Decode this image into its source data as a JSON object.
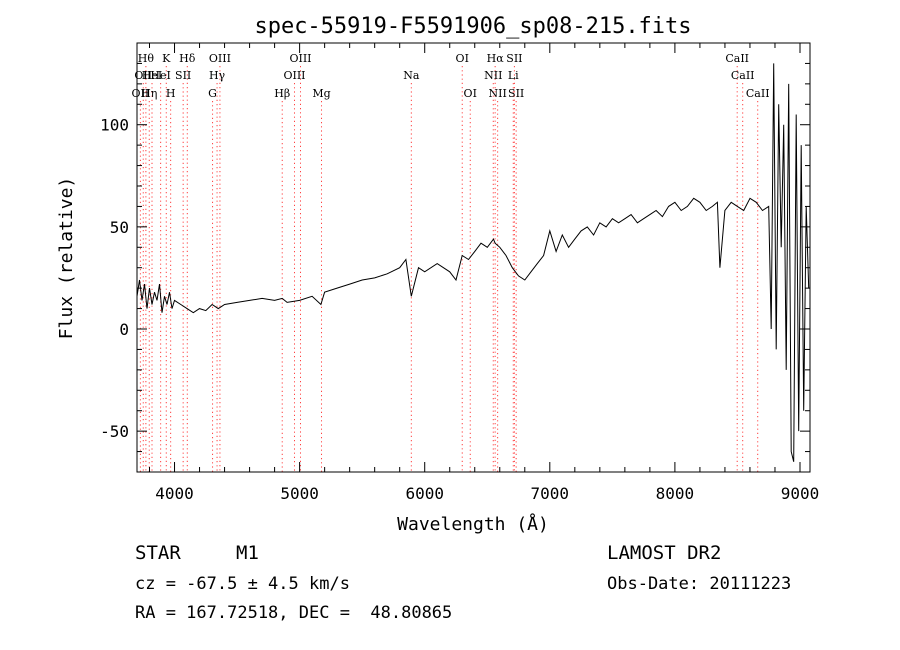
{
  "chart_data": {
    "type": "line",
    "title": "spec-55919-F5591906_sp08-215.fits",
    "xlabel": "Wavelength (Å)",
    "ylabel": "Flux (relative)",
    "xlim": [
      3700,
      9080
    ],
    "ylim": [
      -70,
      140
    ],
    "xticks": [
      4000,
      5000,
      6000,
      7000,
      8000,
      9000
    ],
    "yticks": [
      -50,
      0,
      50,
      100
    ],
    "grid": false,
    "line_color": "#000000",
    "marker_color": "#ff4040",
    "spectrum": {
      "x": [
        3700,
        3720,
        3740,
        3760,
        3780,
        3800,
        3820,
        3840,
        3860,
        3880,
        3900,
        3920,
        3940,
        3960,
        3980,
        4000,
        4050,
        4100,
        4150,
        4200,
        4250,
        4300,
        4350,
        4400,
        4500,
        4600,
        4700,
        4800,
        4861,
        4900,
        5000,
        5100,
        5170,
        5200,
        5300,
        5400,
        5500,
        5600,
        5700,
        5800,
        5850,
        5893,
        5950,
        6000,
        6100,
        6200,
        6250,
        6300,
        6350,
        6400,
        6450,
        6500,
        6550,
        6563,
        6600,
        6650,
        6700,
        6750,
        6800,
        6850,
        6900,
        6950,
        7000,
        7050,
        7100,
        7150,
        7200,
        7250,
        7300,
        7350,
        7400,
        7450,
        7500,
        7550,
        7600,
        7650,
        7700,
        7750,
        7800,
        7850,
        7900,
        7950,
        8000,
        8050,
        8100,
        8150,
        8200,
        8250,
        8300,
        8340,
        8360,
        8400,
        8450,
        8500,
        8550,
        8600,
        8650,
        8700,
        8750,
        8770,
        8790,
        8810,
        8830,
        8850,
        8870,
        8890,
        8910,
        8930,
        8950,
        8970,
        8990,
        9010,
        9030,
        9050,
        9070
      ],
      "y": [
        16,
        24,
        14,
        22,
        10,
        20,
        12,
        18,
        14,
        22,
        8,
        16,
        12,
        18,
        10,
        14,
        12,
        10,
        8,
        10,
        9,
        12,
        10,
        12,
        13,
        14,
        15,
        14,
        15,
        13,
        14,
        16,
        12,
        18,
        20,
        22,
        24,
        25,
        27,
        30,
        34,
        16,
        30,
        28,
        32,
        28,
        24,
        36,
        34,
        38,
        42,
        40,
        44,
        42,
        40,
        36,
        30,
        26,
        24,
        28,
        32,
        36,
        48,
        38,
        46,
        40,
        44,
        48,
        50,
        46,
        52,
        50,
        54,
        52,
        54,
        56,
        52,
        54,
        56,
        58,
        55,
        60,
        62,
        58,
        60,
        64,
        62,
        58,
        60,
        62,
        30,
        58,
        62,
        60,
        58,
        64,
        62,
        58,
        60,
        0,
        130,
        -10,
        110,
        40,
        100,
        -20,
        120,
        -60,
        -65,
        105,
        -50,
        90,
        -40,
        60,
        20
      ]
    },
    "lines": [
      {
        "x": 3727,
        "label": "OII",
        "row": 2
      },
      {
        "x": 3750,
        "label": "OII",
        "row": 1
      },
      {
        "x": 3771,
        "label": "Hθ",
        "row": 0
      },
      {
        "x": 3798,
        "label": "Hη",
        "row": 2
      },
      {
        "x": 3820,
        "label": "HeI",
        "row": 1
      },
      {
        "x": 3889,
        "label": "HeI",
        "row": 1
      },
      {
        "x": 3934,
        "label": "K",
        "row": 0
      },
      {
        "x": 3969,
        "label": "H",
        "row": 2
      },
      {
        "x": 4069,
        "label": "SII",
        "row": 1
      },
      {
        "x": 4102,
        "label": "Hδ",
        "row": 0
      },
      {
        "x": 4304,
        "label": "G",
        "row": 2
      },
      {
        "x": 4340,
        "label": "Hγ",
        "row": 1
      },
      {
        "x": 4363,
        "label": "OIII",
        "row": 0
      },
      {
        "x": 4861,
        "label": "Hβ",
        "row": 2
      },
      {
        "x": 4959,
        "label": "OIII",
        "row": 1
      },
      {
        "x": 5007,
        "label": "OIII",
        "row": 0
      },
      {
        "x": 5175,
        "label": "Mg",
        "row": 2
      },
      {
        "x": 5893,
        "label": "Na",
        "row": 1
      },
      {
        "x": 6300,
        "label": "OI",
        "row": 0
      },
      {
        "x": 6364,
        "label": "OI",
        "row": 2
      },
      {
        "x": 6548,
        "label": "NII",
        "row": 1
      },
      {
        "x": 6563,
        "label": "Hα",
        "row": 0
      },
      {
        "x": 6583,
        "label": "NII",
        "row": 2
      },
      {
        "x": 6708,
        "label": "Li",
        "row": 1
      },
      {
        "x": 6717,
        "label": "SII",
        "row": 0
      },
      {
        "x": 6731,
        "label": "SII",
        "row": 2
      },
      {
        "x": 8498,
        "label": "CaII",
        "row": 0
      },
      {
        "x": 8542,
        "label": "CaII",
        "row": 1
      },
      {
        "x": 8662,
        "label": "CaII",
        "row": 2
      }
    ]
  },
  "info": {
    "object_type": "STAR",
    "subclass": "M1",
    "survey": "LAMOST DR2",
    "redshift": "cz = -67.5 ± 4.5 km/s",
    "obs_date": "Obs-Date: 20111223",
    "coords": "RA = 167.72518, DEC =  48.80865"
  }
}
